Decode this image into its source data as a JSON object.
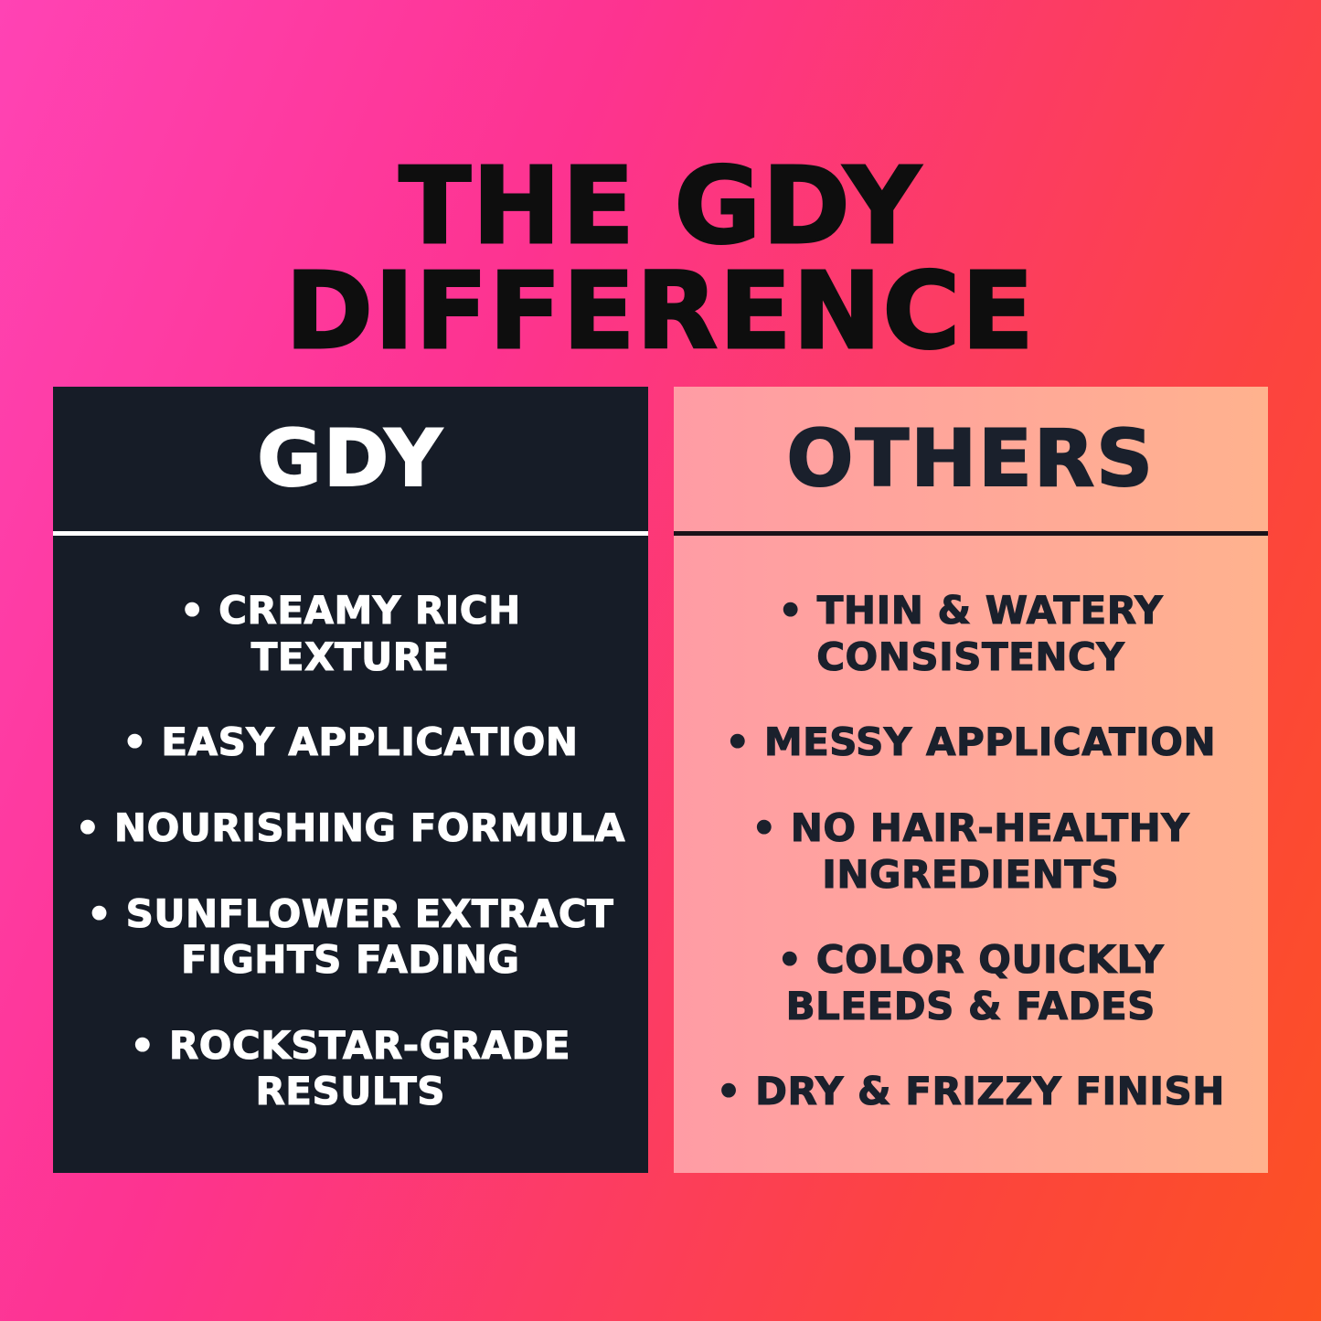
{
  "title": "THE GDY\nDIFFERENCE",
  "cards": [
    {
      "header": "GDY",
      "items": [
        "• CREAMY RICH\nTEXTURE",
        "• EASY APPLICATION",
        "• NOURISHING FORMULA",
        "• SUNFLOWER EXTRACT\nFIGHTS FADING",
        "• ROCKSTAR-GRADE\nRESULTS"
      ]
    },
    {
      "header": "OTHERS",
      "items": [
        "• THIN & WATERY\nCONSISTENCY",
        "• MESSY APPLICATION",
        "• NO HAIR-HEALTHY\nINGREDIENTS",
        "• COLOR QUICKLY\nBLEEDS & FADES",
        "• DRY & FRIZZY FINISH"
      ]
    }
  ],
  "colors": {
    "background_gradient_start": "#ff43b4",
    "background_gradient_end": "#fc5122",
    "title_text": "#0e0e0e",
    "gdy_card_background": "#161c27",
    "gdy_card_text": "#ffffff",
    "gdy_divider": "#ffffff",
    "others_card_background_start": "#ff9ca5",
    "others_card_background_end": "#ffb28e",
    "others_card_text": "#1a202c",
    "others_divider": "#1a1219"
  }
}
